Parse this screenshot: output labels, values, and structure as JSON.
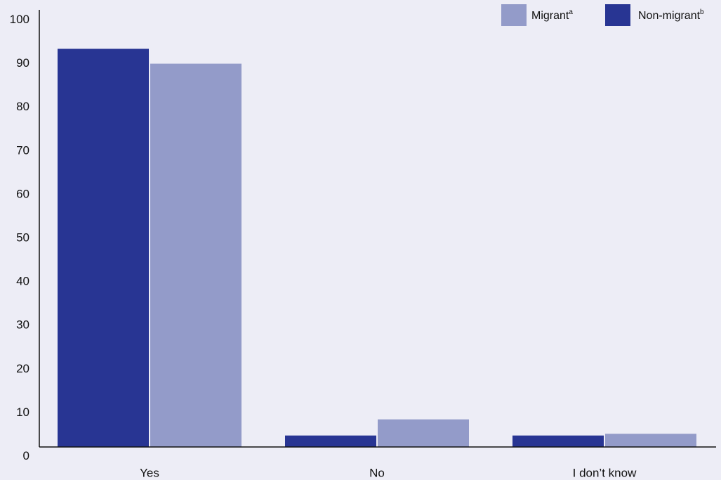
{
  "chart_data": {
    "type": "bar",
    "title": "",
    "xlabel": "",
    "ylabel": "",
    "ylim": [
      0,
      100
    ],
    "yticks": [
      0,
      10,
      20,
      30,
      40,
      50,
      60,
      70,
      80,
      90,
      100
    ],
    "grid": false,
    "legend_position": "top-right",
    "categories": [
      "Yes",
      "No",
      "I don’t know"
    ],
    "series": [
      {
        "name": "Non-migrant",
        "superscript": "b",
        "color": "#283593",
        "values": [
          93.4,
          4.8,
          4.8
        ]
      },
      {
        "name": "Migrant",
        "superscript": "a",
        "color": "#939bc9",
        "values": [
          90,
          8.5,
          5.2
        ]
      }
    ],
    "legend_order": [
      "Migrant",
      "Non-migrant"
    ]
  }
}
